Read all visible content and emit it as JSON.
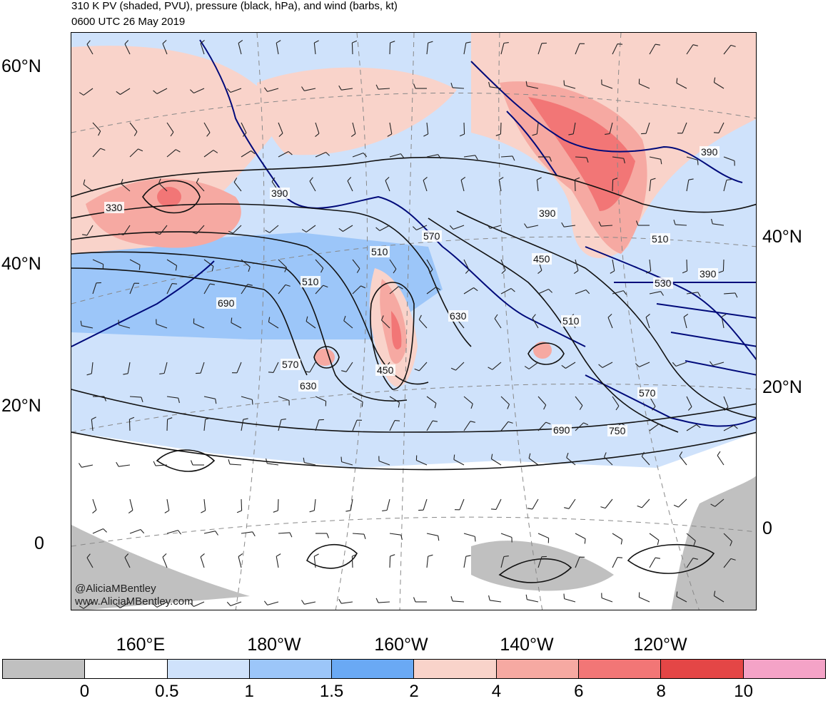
{
  "header": {
    "title": "310 K PV (shaded, PVU), pressure (black, hPa), and wind (barbs, kt)",
    "subtitle": "0600 UTC 26 May 2019"
  },
  "axes": {
    "left_lat_labels": [
      "60°N",
      "40°N",
      "20°N",
      "0"
    ],
    "right_lat_labels": [
      "40°N",
      "20°N",
      "0"
    ],
    "lon_labels": [
      "160°E",
      "180°W",
      "160°W",
      "140°W",
      "120°W"
    ]
  },
  "contour_labels": [
    "330",
    "390",
    "390",
    "390",
    "510",
    "510",
    "510",
    "510",
    "570",
    "570",
    "570",
    "630",
    "630",
    "690",
    "690",
    "750",
    "450",
    "450",
    "530",
    "390"
  ],
  "credit": {
    "handle": "@AliciaMBentley",
    "url": "www.AliciaMBentley.com"
  },
  "colorbar": {
    "labels": [
      "0",
      "0.5",
      "1",
      "1.5",
      "2",
      "4",
      "6",
      "8",
      "10"
    ],
    "colors": [
      "#c0c0c0",
      "#ffffff",
      "#cfe2fb",
      "#9cc6f9",
      "#6aa9f4",
      "#f9d3ca",
      "#f6a9a2",
      "#f27676",
      "#e44646",
      "#f4a3c7"
    ]
  },
  "pv_colors": {
    "lowest": "#c0c0c0",
    "light_blue": "#cfe2fb",
    "mid_blue": "#9cc6f9",
    "blue": "#6aa9f4",
    "light_red": "#f9d3ca",
    "salmon": "#f6a9a2",
    "red": "#f27676",
    "dark_red": "#e44646"
  },
  "coastline_color": "#000a7a"
}
